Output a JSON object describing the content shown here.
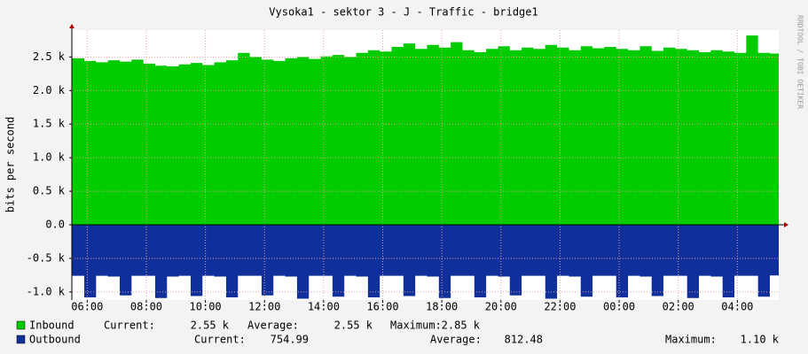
{
  "chart_data": {
    "type": "area",
    "title": "Vysoka1 - sektor 3 - J - Traffic - bridge1",
    "y_label": "bits per second",
    "side_note": "RRDTOOL / TOBI OETIKER",
    "grid": true,
    "xlim": [
      5.48,
      29.4
    ],
    "ylim": [
      -1120,
      2900
    ],
    "xticks": [
      {
        "value": 6,
        "label": "06:00"
      },
      {
        "value": 8,
        "label": "08:00"
      },
      {
        "value": 10,
        "label": "10:00"
      },
      {
        "value": 12,
        "label": "12:00"
      },
      {
        "value": 14,
        "label": "14:00"
      },
      {
        "value": 16,
        "label": "16:00"
      },
      {
        "value": 18,
        "label": "18:00"
      },
      {
        "value": 20,
        "label": "20:00"
      },
      {
        "value": 22,
        "label": "22:00"
      },
      {
        "value": 24,
        "label": "00:00"
      },
      {
        "value": 26,
        "label": "02:00"
      },
      {
        "value": 28,
        "label": "04:00"
      }
    ],
    "yticks": [
      {
        "value": -1000,
        "label": "-1.0 k"
      },
      {
        "value": -500,
        "label": "-0.5 k"
      },
      {
        "value": 0,
        "label": "0.0"
      },
      {
        "value": 500,
        "label": "0.5 k"
      },
      {
        "value": 1000,
        "label": "1.0 k"
      },
      {
        "value": 1500,
        "label": "1.5 k"
      },
      {
        "value": 2000,
        "label": "2.0 k"
      },
      {
        "value": 2500,
        "label": "2.5 k"
      }
    ],
    "x": [
      5.5,
      5.9,
      6.3,
      6.7,
      7.1,
      7.5,
      7.9,
      8.3,
      8.7,
      9.1,
      9.5,
      9.9,
      10.3,
      10.7,
      11.1,
      11.5,
      11.9,
      12.3,
      12.7,
      13.1,
      13.5,
      13.9,
      14.3,
      14.7,
      15.1,
      15.5,
      15.9,
      16.3,
      16.7,
      17.1,
      17.5,
      17.9,
      18.3,
      18.7,
      19.1,
      19.5,
      19.9,
      20.3,
      20.7,
      21.1,
      21.5,
      21.9,
      22.3,
      22.7,
      23.1,
      23.5,
      23.9,
      24.3,
      24.7,
      25.1,
      25.5,
      25.9,
      26.3,
      26.7,
      27.1,
      27.5,
      27.9,
      28.3,
      28.7,
      29.1
    ],
    "series": [
      {
        "name": "Inbound",
        "color": "#00cc00",
        "stats": [
          "Current:",
          "2.55 k",
          "Average:",
          "2.55 k",
          "Maximum:",
          "2.85 k"
        ],
        "values": [
          2480,
          2440,
          2420,
          2450,
          2430,
          2460,
          2400,
          2370,
          2360,
          2390,
          2410,
          2380,
          2420,
          2450,
          2560,
          2500,
          2460,
          2440,
          2480,
          2500,
          2470,
          2510,
          2530,
          2500,
          2560,
          2600,
          2580,
          2650,
          2700,
          2620,
          2680,
          2640,
          2720,
          2600,
          2570,
          2620,
          2660,
          2600,
          2640,
          2620,
          2680,
          2640,
          2600,
          2660,
          2630,
          2650,
          2620,
          2600,
          2660,
          2590,
          2640,
          2620,
          2600,
          2570,
          2600,
          2580,
          2560,
          2820,
          2560,
          2550
        ]
      },
      {
        "name": "Outbound",
        "color": "#0f2f9a",
        "stats": [
          "Current:",
          "754.99",
          "Average:",
          "812.48",
          "Maximum:",
          "1.10 k"
        ],
        "values": [
          -760,
          -1080,
          -760,
          -770,
          -1050,
          -760,
          -760,
          -1090,
          -770,
          -760,
          -1060,
          -760,
          -770,
          -1080,
          -760,
          -760,
          -1050,
          -760,
          -770,
          -1100,
          -760,
          -760,
          -1070,
          -760,
          -770,
          -1080,
          -760,
          -760,
          -1060,
          -760,
          -770,
          -1090,
          -760,
          -760,
          -1080,
          -760,
          -770,
          -1050,
          -760,
          -760,
          -1100,
          -760,
          -770,
          -1070,
          -760,
          -760,
          -1080,
          -760,
          -770,
          -1060,
          -760,
          -760,
          -1090,
          -760,
          -770,
          -1080,
          -760,
          -760,
          -1070,
          -755
        ]
      }
    ]
  }
}
